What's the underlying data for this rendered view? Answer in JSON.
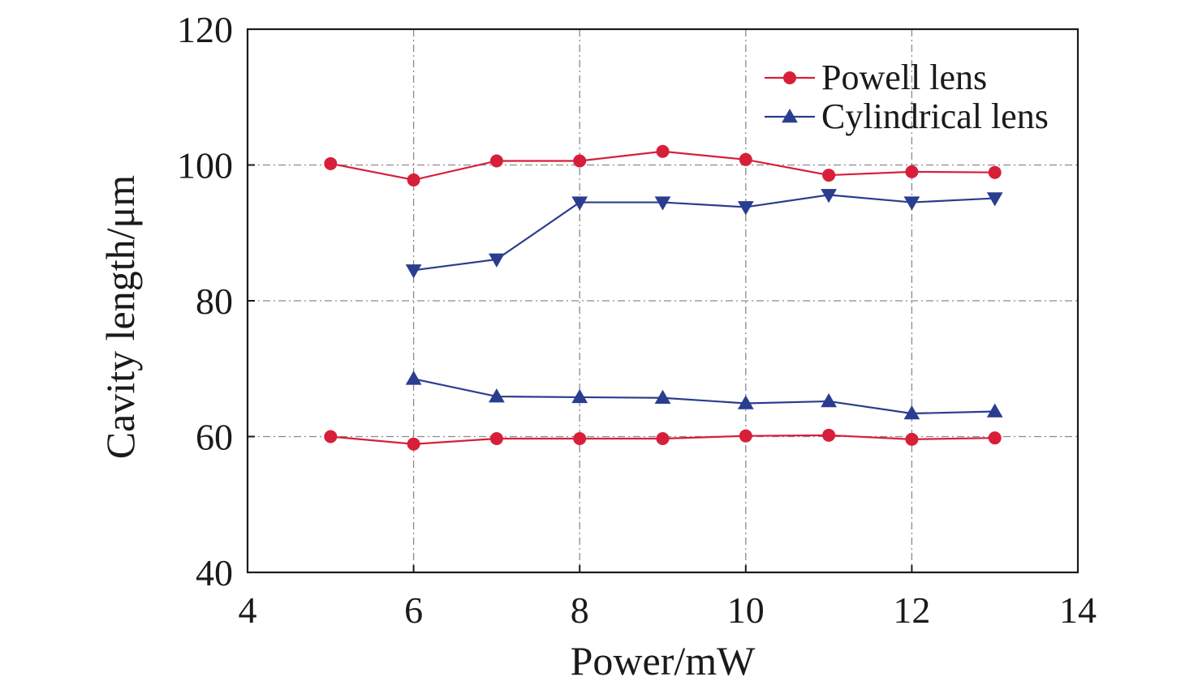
{
  "chart_data": {
    "type": "line",
    "xlabel": "Power/mW",
    "ylabel": "Cavity length/μm",
    "xlim": [
      4,
      14
    ],
    "ylim": [
      40,
      120
    ],
    "xticks": [
      4,
      6,
      8,
      10,
      12,
      14
    ],
    "yticks": [
      40,
      60,
      80,
      100,
      120
    ],
    "grid": true,
    "legend_position": "top-right",
    "legend": [
      {
        "label": "Powell lens",
        "color": "#d81f3a",
        "marker": "circle"
      },
      {
        "label": "Cylindrical lens",
        "color": "#2a3d8f",
        "marker": "triangle-up"
      }
    ],
    "series": [
      {
        "legend_index": 0,
        "color": "#d81f3a",
        "marker": "circle",
        "x": [
          5,
          6,
          7,
          8,
          9,
          10,
          11,
          12,
          13
        ],
        "y": [
          100.2,
          97.8,
          100.6,
          100.6,
          102.0,
          100.8,
          98.5,
          99.0,
          98.9
        ]
      },
      {
        "legend_index": 0,
        "color": "#d81f3a",
        "marker": "circle",
        "x": [
          5,
          6,
          7,
          8,
          9,
          10,
          11,
          12,
          13
        ],
        "y": [
          60.0,
          58.9,
          59.7,
          59.7,
          59.7,
          60.1,
          60.2,
          59.6,
          59.8
        ]
      },
      {
        "legend_index": 1,
        "color": "#2a3d8f",
        "marker": "triangle-down",
        "x": [
          6,
          7,
          8,
          9,
          10,
          11,
          12,
          13
        ],
        "y": [
          84.5,
          86.1,
          94.5,
          94.5,
          93.8,
          95.6,
          94.5,
          95.1
        ]
      },
      {
        "legend_index": 1,
        "color": "#2a3d8f",
        "marker": "triangle-up",
        "x": [
          6,
          7,
          8,
          9,
          10,
          11,
          12,
          13
        ],
        "y": [
          68.5,
          65.9,
          65.8,
          65.7,
          64.9,
          65.2,
          63.4,
          63.7
        ]
      }
    ]
  }
}
